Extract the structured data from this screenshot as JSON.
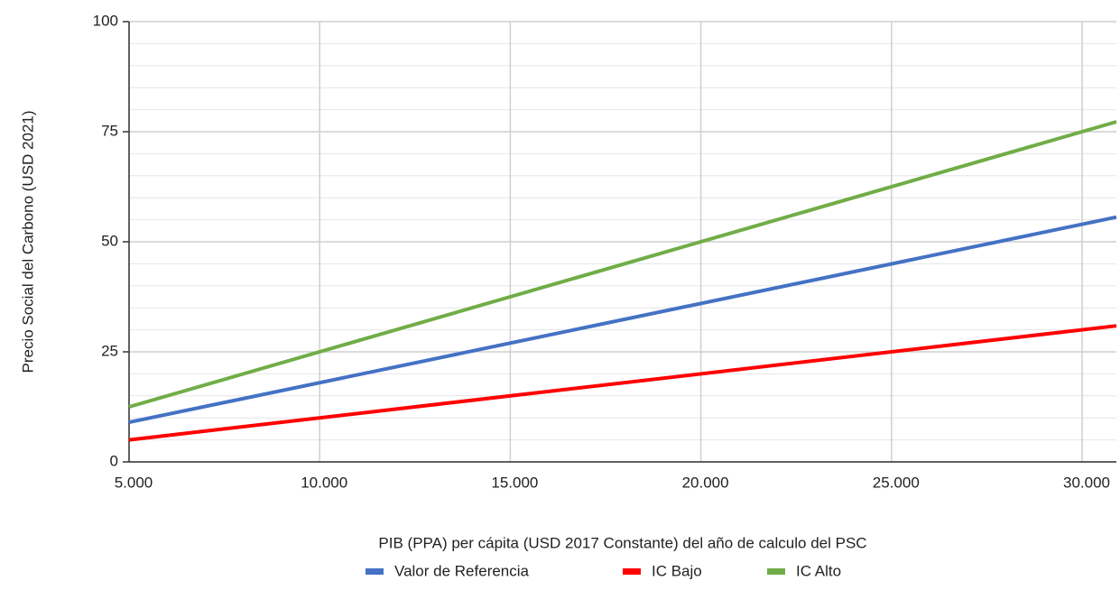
{
  "chart_data": {
    "type": "line",
    "x_label": "PIB (PPA) per cápita (USD 2017 Constante) del año de calculo del PSC",
    "y_label": "Precio Social del Carbono (USD 2021)",
    "x": [
      5000,
      30900
    ],
    "series": [
      {
        "name": "Valor de Referencia",
        "color": "#4472c4",
        "values": [
          9,
          55.6
        ]
      },
      {
        "name": "IC Bajo",
        "color": "#ff0000",
        "values": [
          5,
          30.9
        ]
      },
      {
        "name": "IC Alto",
        "color": "#70ad47",
        "values": [
          12.5,
          77.25
        ]
      }
    ],
    "xlim": [
      5000,
      30900
    ],
    "ylim": [
      0,
      100
    ],
    "xticks": [
      {
        "value": 5000,
        "label": "5.000"
      },
      {
        "value": 10000,
        "label": "10.000"
      },
      {
        "value": 15000,
        "label": "15.000"
      },
      {
        "value": 20000,
        "label": "20.000"
      },
      {
        "value": 25000,
        "label": "25.000"
      },
      {
        "value": 30000,
        "label": "30.000"
      }
    ],
    "yticks": [
      0,
      25,
      50,
      75,
      100
    ],
    "minor_yticks": [
      5,
      10,
      15,
      20,
      30,
      35,
      40,
      45,
      55,
      60,
      65,
      70,
      80,
      85,
      90,
      95
    ],
    "grid": true
  }
}
